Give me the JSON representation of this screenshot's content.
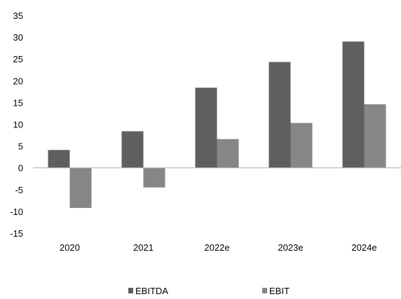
{
  "chart_data": {
    "type": "bar",
    "title": "",
    "xlabel": "",
    "ylabel": "",
    "categories": [
      "2020",
      "2021",
      "2022e",
      "2023e",
      "2024e"
    ],
    "series": [
      {
        "name": "EBITDA",
        "values": [
          4.1,
          8.4,
          18.4,
          24.3,
          29.0
        ],
        "color": "#5f5f5f"
      },
      {
        "name": "EBIT",
        "values": [
          -9.2,
          -4.5,
          6.6,
          10.3,
          14.6
        ],
        "color": "#868686"
      }
    ],
    "ylim": [
      -15,
      35
    ],
    "yticks": [
      "-15",
      "-10",
      "-5",
      "0",
      "5",
      "10",
      "15",
      "20",
      "25",
      "30",
      "35"
    ],
    "grid": false,
    "legend_position": "bottom"
  }
}
